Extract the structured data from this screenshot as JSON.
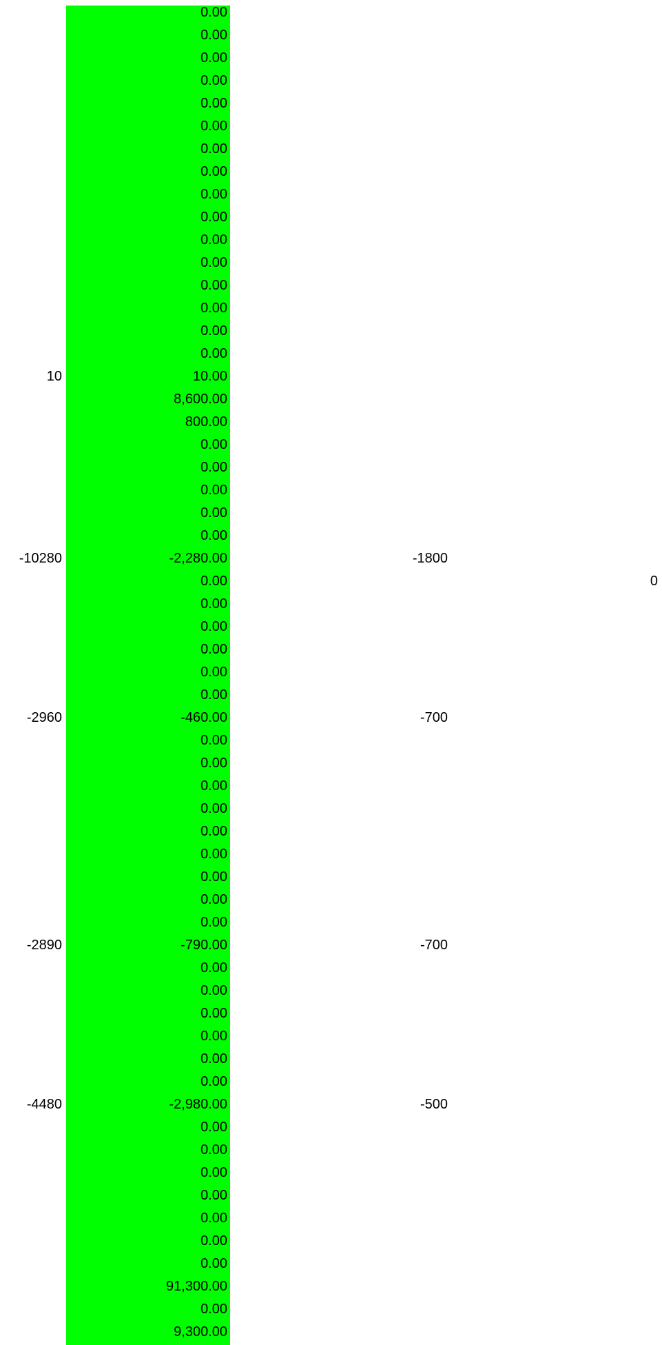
{
  "sheet": {
    "fill_color": "#00ff00",
    "rows": [
      {
        "a": "",
        "b": "0.00",
        "c": "",
        "d": ""
      },
      {
        "a": "",
        "b": "0.00",
        "c": "",
        "d": ""
      },
      {
        "a": "",
        "b": "0.00",
        "c": "",
        "d": ""
      },
      {
        "a": "",
        "b": "0.00",
        "c": "",
        "d": ""
      },
      {
        "a": "",
        "b": "0.00",
        "c": "",
        "d": ""
      },
      {
        "a": "",
        "b": "0.00",
        "c": "",
        "d": ""
      },
      {
        "a": "",
        "b": "0.00",
        "c": "",
        "d": ""
      },
      {
        "a": "",
        "b": "0.00",
        "c": "",
        "d": ""
      },
      {
        "a": "",
        "b": "0.00",
        "c": "",
        "d": ""
      },
      {
        "a": "",
        "b": "0.00",
        "c": "",
        "d": ""
      },
      {
        "a": "",
        "b": "0.00",
        "c": "",
        "d": ""
      },
      {
        "a": "",
        "b": "0.00",
        "c": "",
        "d": ""
      },
      {
        "a": "",
        "b": "0.00",
        "c": "",
        "d": ""
      },
      {
        "a": "",
        "b": "0.00",
        "c": "",
        "d": ""
      },
      {
        "a": "",
        "b": "0.00",
        "c": "",
        "d": ""
      },
      {
        "a": "",
        "b": "0.00",
        "c": "",
        "d": ""
      },
      {
        "a": "10",
        "b": "10.00",
        "c": "",
        "d": ""
      },
      {
        "a": "",
        "b": "8,600.00",
        "c": "",
        "d": ""
      },
      {
        "a": "",
        "b": "800.00",
        "c": "",
        "d": ""
      },
      {
        "a": "",
        "b": "0.00",
        "c": "",
        "d": ""
      },
      {
        "a": "",
        "b": "0.00",
        "c": "",
        "d": ""
      },
      {
        "a": "",
        "b": "0.00",
        "c": "",
        "d": ""
      },
      {
        "a": "",
        "b": "0.00",
        "c": "",
        "d": ""
      },
      {
        "a": "",
        "b": "0.00",
        "c": "",
        "d": ""
      },
      {
        "a": "-10280",
        "b": "-2,280.00",
        "c": "-1800",
        "d": ""
      },
      {
        "a": "",
        "b": "0.00",
        "c": "",
        "d": "0"
      },
      {
        "a": "",
        "b": "0.00",
        "c": "",
        "d": ""
      },
      {
        "a": "",
        "b": "0.00",
        "c": "",
        "d": ""
      },
      {
        "a": "",
        "b": "0.00",
        "c": "",
        "d": ""
      },
      {
        "a": "",
        "b": "0.00",
        "c": "",
        "d": ""
      },
      {
        "a": "",
        "b": "0.00",
        "c": "",
        "d": ""
      },
      {
        "a": "-2960",
        "b": "-460.00",
        "c": "-700",
        "d": ""
      },
      {
        "a": "",
        "b": "0.00",
        "c": "",
        "d": ""
      },
      {
        "a": "",
        "b": "0.00",
        "c": "",
        "d": ""
      },
      {
        "a": "",
        "b": "0.00",
        "c": "",
        "d": ""
      },
      {
        "a": "",
        "b": "0.00",
        "c": "",
        "d": ""
      },
      {
        "a": "",
        "b": "0.00",
        "c": "",
        "d": ""
      },
      {
        "a": "",
        "b": "0.00",
        "c": "",
        "d": ""
      },
      {
        "a": "",
        "b": "0.00",
        "c": "",
        "d": ""
      },
      {
        "a": "",
        "b": "0.00",
        "c": "",
        "d": ""
      },
      {
        "a": "",
        "b": "0.00",
        "c": "",
        "d": ""
      },
      {
        "a": "-2890",
        "b": "-790.00",
        "c": "-700",
        "d": ""
      },
      {
        "a": "",
        "b": "0.00",
        "c": "",
        "d": ""
      },
      {
        "a": "",
        "b": "0.00",
        "c": "",
        "d": ""
      },
      {
        "a": "",
        "b": "0.00",
        "c": "",
        "d": ""
      },
      {
        "a": "",
        "b": "0.00",
        "c": "",
        "d": ""
      },
      {
        "a": "",
        "b": "0.00",
        "c": "",
        "d": ""
      },
      {
        "a": "",
        "b": "0.00",
        "c": "",
        "d": ""
      },
      {
        "a": "-4480",
        "b": "-2,980.00",
        "c": "-500",
        "d": ""
      },
      {
        "a": "",
        "b": "0.00",
        "c": "",
        "d": ""
      },
      {
        "a": "",
        "b": "0.00",
        "c": "",
        "d": ""
      },
      {
        "a": "",
        "b": "0.00",
        "c": "",
        "d": ""
      },
      {
        "a": "",
        "b": "0.00",
        "c": "",
        "d": ""
      },
      {
        "a": "",
        "b": "0.00",
        "c": "",
        "d": ""
      },
      {
        "a": "",
        "b": "0.00",
        "c": "",
        "d": ""
      },
      {
        "a": "",
        "b": "0.00",
        "c": "",
        "d": ""
      },
      {
        "a": "",
        "b": "91,300.00",
        "c": "",
        "d": ""
      },
      {
        "a": "",
        "b": "0.00",
        "c": "",
        "d": ""
      },
      {
        "a": "",
        "b": "9,300.00",
        "c": "",
        "d": ""
      }
    ]
  }
}
